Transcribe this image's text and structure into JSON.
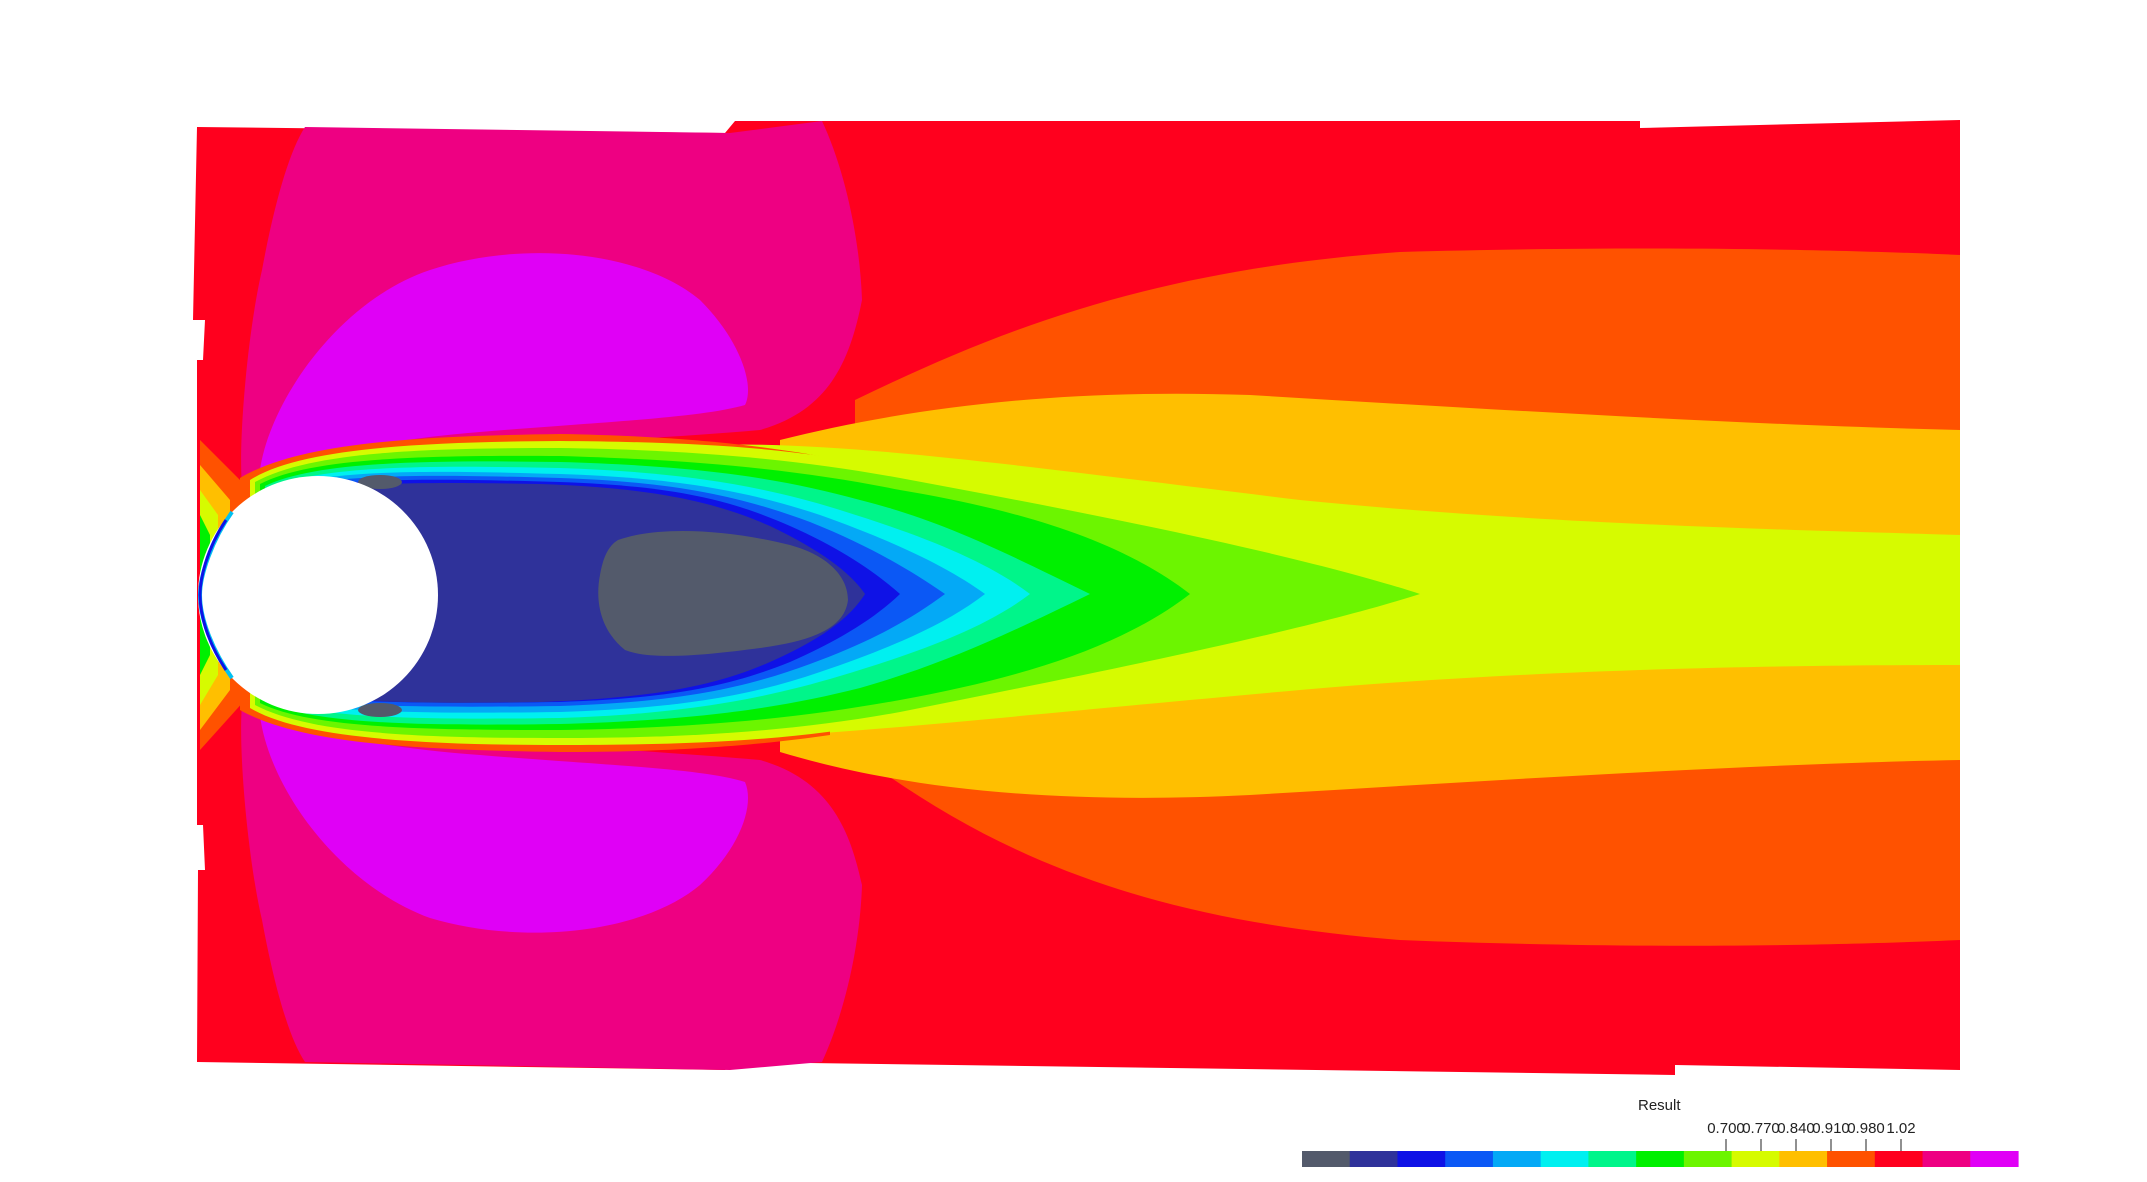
{
  "chart_data": {
    "type": "heatmap",
    "title": "",
    "legend": {
      "title": "Result",
      "placement": "bottom-right",
      "ticks": [
        "0.700",
        "0.770",
        "0.840",
        "0.910",
        "0.980",
        "1.02"
      ],
      "bands": [
        "#535a6b",
        "#2f329a",
        "#0f12e6",
        "#0b58f5",
        "#04a9f6",
        "#00f0f0",
        "#00f58a",
        "#00f000",
        "#6cf500",
        "#d6fb00",
        "#ffbf00",
        "#ff5200",
        "#ff001e",
        "#ee0082",
        "#e000f6"
      ]
    },
    "color_scale": {
      "min_color": "#535a6b",
      "max_color": "#e000f6"
    }
  }
}
